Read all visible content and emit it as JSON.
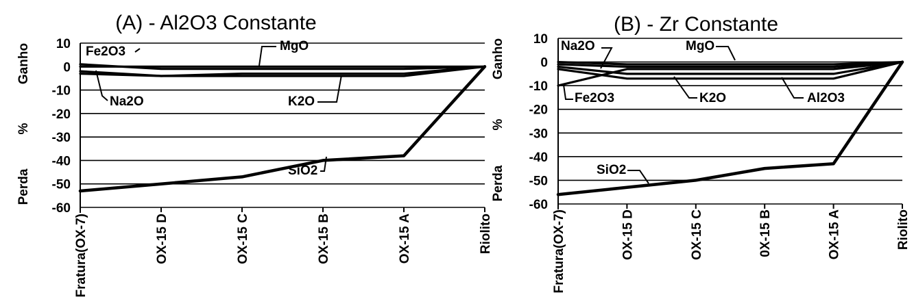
{
  "chart_data": [
    {
      "type": "line",
      "title": "(A) - Al2O3 Constante",
      "side_labels": {
        "top": "Ganho",
        "middle": "%",
        "bottom": "Perda"
      },
      "categories": [
        "Fratura(OX-7)",
        "OX-15 D",
        "OX-15 C",
        "OX-15 B",
        "OX-15 A",
        "Riolito"
      ],
      "ylim": [
        -60,
        10
      ],
      "yticks": [
        10,
        0,
        -10,
        -20,
        -30,
        -40,
        -50,
        -60
      ],
      "grid": true,
      "series": [
        {
          "name": "MgO",
          "values": [
            0,
            0,
            0,
            0,
            0,
            0
          ]
        },
        {
          "name": "Fe2O3",
          "values": [
            1,
            -1,
            -1,
            -1,
            -1,
            0
          ]
        },
        {
          "name": "Na2O",
          "values": [
            -2,
            -4,
            -3,
            -3,
            -3,
            0
          ]
        },
        {
          "name": "K2O",
          "values": [
            -3,
            -4,
            -4,
            -4,
            -4,
            0
          ]
        },
        {
          "name": "SiO2",
          "values": [
            -53,
            -50,
            -47,
            -40,
            -38,
            0
          ]
        }
      ]
    },
    {
      "type": "line",
      "title": "(B) - Zr Constante",
      "side_labels": {
        "top": "Ganho",
        "middle": "%",
        "bottom": "Perda"
      },
      "categories": [
        "Fratura(OX-7)",
        "OX-15 D",
        "OX-15 C",
        "0X-15 B",
        "OX-15 A",
        "Riolito"
      ],
      "ylim": [
        -60,
        10
      ],
      "yticks": [
        10,
        0,
        -10,
        -20,
        -30,
        -40,
        -50,
        -60
      ],
      "grid": true,
      "series": [
        {
          "name": "MgO",
          "values": [
            0,
            -1,
            -1,
            -1,
            -1,
            0
          ]
        },
        {
          "name": "Na2O",
          "values": [
            -1,
            -2,
            -2,
            -2,
            -2,
            0
          ]
        },
        {
          "name": "K2O",
          "values": [
            -2,
            -5,
            -5,
            -5,
            -5,
            0
          ]
        },
        {
          "name": "Al2O3",
          "values": [
            -3,
            -7,
            -7,
            -7,
            -7,
            0
          ]
        },
        {
          "name": "Fe2O3",
          "values": [
            -10,
            -3,
            -3,
            -3,
            -3,
            0
          ]
        },
        {
          "name": "SiO2",
          "values": [
            -56,
            -53,
            -50,
            -45,
            -43,
            0
          ]
        }
      ]
    }
  ]
}
